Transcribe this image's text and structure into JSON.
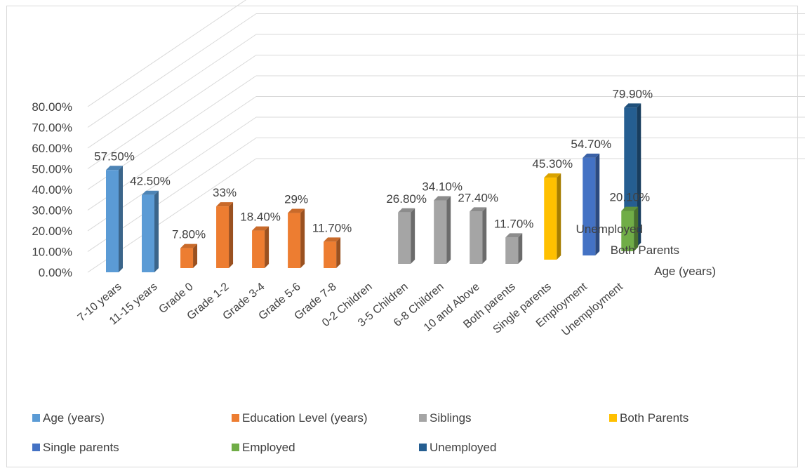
{
  "chart_data": {
    "type": "bar",
    "style": "3d-column",
    "categories": [
      "7-10 years",
      "11-15 years",
      "Grade 0",
      "Grade 1-2",
      "Grade 3-4",
      "Grade 5-6",
      "Grade 7-8",
      "0-2 Children",
      "3-5 Children",
      "6-8 Children",
      "10 and Above",
      "Both parents",
      "Single parents",
      "Employment",
      "Unemployment"
    ],
    "series": [
      {
        "name": "Age (years)",
        "color": "#5B9BD5",
        "bars": [
          {
            "category": "7-10 years",
            "value": 57.5,
            "label": "57.50%"
          },
          {
            "category": "11-15 years",
            "value": 42.5,
            "label": "42.50%"
          }
        ]
      },
      {
        "name": "Education Level (years)",
        "color": "#ED7D31",
        "bars": [
          {
            "category": "Grade 0",
            "value": 7.8,
            "label": "7.80%"
          },
          {
            "category": "Grade 1-2",
            "value": 33,
            "label": "33%"
          },
          {
            "category": "Grade 3-4",
            "value": 18.4,
            "label": "18.40%"
          },
          {
            "category": "Grade 5-6",
            "value": 29,
            "label": "29%"
          },
          {
            "category": "Grade 7-8",
            "value": 11.7,
            "label": "11.70%"
          }
        ]
      },
      {
        "name": "Siblings",
        "color": "#A5A5A5",
        "bars": [
          {
            "category": "3-5 Children",
            "value": 26.8,
            "label": "26.80%"
          },
          {
            "category": "6-8 Children",
            "value": 34.1,
            "label": "34.10%"
          },
          {
            "category": "10 and Above",
            "value": 27.4,
            "label": "27.40%"
          },
          {
            "category": "Both parents",
            "value": 11.7,
            "label": "11.70%"
          }
        ]
      },
      {
        "name": "Both Parents",
        "color": "#FFC000",
        "bars": [
          {
            "category": "Single parents",
            "value": 45.3,
            "label": "45.30%"
          }
        ]
      },
      {
        "name": "Single parents",
        "color": "#4472C4",
        "bars": [
          {
            "category": "Employment",
            "value": 54.7,
            "label": "54.70%"
          }
        ]
      },
      {
        "name": "Employed",
        "color": "#70AD47",
        "bars": [
          {
            "category": "Unemployment",
            "value": 20.1,
            "label": "20.10%"
          }
        ]
      },
      {
        "name": "Unemployed",
        "color": "#255E91",
        "bars": [
          {
            "category": "Unemployment",
            "value": 79.9,
            "label": "79.90%"
          }
        ]
      }
    ],
    "yaxis": {
      "ticks": [
        "0.00%",
        "10.00%",
        "20.00%",
        "30.00%",
        "40.00%",
        "50.00%",
        "60.00%",
        "70.00%",
        "80.00%"
      ],
      "ylim": [
        0,
        80
      ]
    },
    "depth_axis_labels": [
      "Age (years)",
      "Both Parents",
      "Unemployed"
    ],
    "grid": true,
    "legend_position": "bottom"
  }
}
